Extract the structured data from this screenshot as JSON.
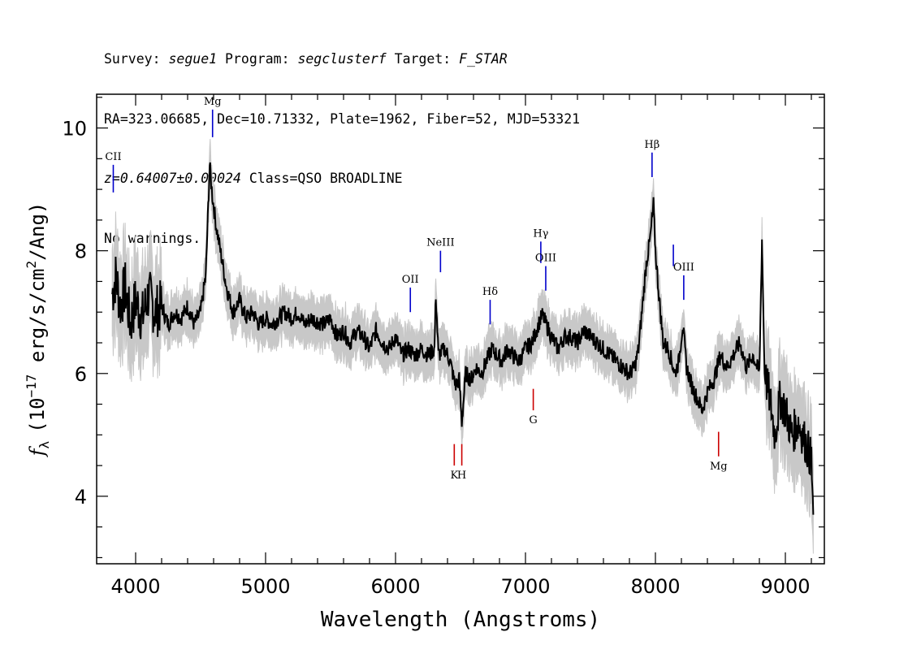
{
  "header": {
    "survey_label": "Survey: ",
    "survey": "segue1",
    "program_label": " Program: ",
    "program": "segclusterf",
    "target_label": " Target: ",
    "target": "F_STAR",
    "coords": "RA=323.06685, Dec=10.71332, Plate=1962, Fiber=52, MJD=53321",
    "redshift": "z=0.64007±0.00024",
    "class": " Class=QSO BROADLINE",
    "warnings": "No warnings."
  },
  "chart_data": {
    "type": "line",
    "xlabel": "Wavelength (Angstroms)",
    "ylabel_f": "f",
    "ylabel_sub": "λ",
    "ylabel_pre": "(10",
    "ylabel_exp": "−17",
    "ylabel_mid": " erg/s/cm",
    "ylabel_exp2": "2",
    "ylabel_post": "/Ang)",
    "xlim": [
      3700,
      9300
    ],
    "ylim": [
      2.9,
      10.55
    ],
    "xticks": [
      "4000",
      "5000",
      "6000",
      "7000",
      "8000",
      "9000"
    ],
    "yticks": [
      "4",
      "6",
      "8",
      "10"
    ],
    "series": [
      {
        "role": "flux",
        "color": "#000000",
        "points": [
          [
            3820,
            7.3
          ],
          [
            3850,
            7.6
          ],
          [
            3880,
            7.1
          ],
          [
            3920,
            7.4
          ],
          [
            3960,
            6.8
          ],
          [
            4000,
            7.2
          ],
          [
            4050,
            6.9
          ],
          [
            4100,
            7.3
          ],
          [
            4150,
            7.0
          ],
          [
            4200,
            7.1
          ],
          [
            4250,
            6.8
          ],
          [
            4300,
            7.0
          ],
          [
            4350,
            6.9
          ],
          [
            4400,
            7.1
          ],
          [
            4450,
            6.8
          ],
          [
            4500,
            7.0
          ],
          [
            4540,
            7.6
          ],
          [
            4570,
            9.4
          ],
          [
            4590,
            8.9
          ],
          [
            4620,
            8.4
          ],
          [
            4660,
            7.9
          ],
          [
            4700,
            7.4
          ],
          [
            4750,
            7.0
          ],
          [
            4800,
            7.2
          ],
          [
            4850,
            6.9
          ],
          [
            4900,
            7.0
          ],
          [
            4950,
            6.8
          ],
          [
            5000,
            6.9
          ],
          [
            5050,
            6.8
          ],
          [
            5100,
            6.9
          ],
          [
            5150,
            7.0
          ],
          [
            5200,
            6.9
          ],
          [
            5250,
            7.0
          ],
          [
            5300,
            6.8
          ],
          [
            5350,
            6.9
          ],
          [
            5400,
            6.85
          ],
          [
            5450,
            6.8
          ],
          [
            5500,
            6.9
          ],
          [
            5550,
            6.6
          ],
          [
            5600,
            6.7
          ],
          [
            5650,
            6.5
          ],
          [
            5700,
            6.7
          ],
          [
            5750,
            6.6
          ],
          [
            5800,
            6.4
          ],
          [
            5850,
            6.7
          ],
          [
            5900,
            6.5
          ],
          [
            5950,
            6.4
          ],
          [
            6000,
            6.6
          ],
          [
            6050,
            6.3
          ],
          [
            6100,
            6.4
          ],
          [
            6150,
            6.3
          ],
          [
            6200,
            6.4
          ],
          [
            6250,
            6.3
          ],
          [
            6300,
            6.4
          ],
          [
            6310,
            7.3
          ],
          [
            6330,
            6.3
          ],
          [
            6380,
            6.4
          ],
          [
            6420,
            6.2
          ],
          [
            6460,
            5.8
          ],
          [
            6490,
            5.9
          ],
          [
            6510,
            5.2
          ],
          [
            6540,
            6.0
          ],
          [
            6580,
            5.9
          ],
          [
            6620,
            6.1
          ],
          [
            6660,
            6.0
          ],
          [
            6700,
            6.2
          ],
          [
            6740,
            6.4
          ],
          [
            6780,
            6.3
          ],
          [
            6820,
            6.2
          ],
          [
            6860,
            6.4
          ],
          [
            6900,
            6.3
          ],
          [
            6950,
            6.2
          ],
          [
            7000,
            6.4
          ],
          [
            7050,
            6.5
          ],
          [
            7100,
            6.8
          ],
          [
            7130,
            6.95
          ],
          [
            7160,
            6.8
          ],
          [
            7200,
            6.6
          ],
          [
            7250,
            6.4
          ],
          [
            7300,
            6.6
          ],
          [
            7350,
            6.6
          ],
          [
            7400,
            6.5
          ],
          [
            7450,
            6.7
          ],
          [
            7500,
            6.6
          ],
          [
            7550,
            6.5
          ],
          [
            7600,
            6.4
          ],
          [
            7650,
            6.3
          ],
          [
            7700,
            6.2
          ],
          [
            7750,
            6.1
          ],
          [
            7800,
            6.0
          ],
          [
            7840,
            6.1
          ],
          [
            7870,
            6.4
          ],
          [
            7900,
            7.1
          ],
          [
            7930,
            7.8
          ],
          [
            7960,
            8.2
          ],
          [
            7985,
            8.75
          ],
          [
            8000,
            8.0
          ],
          [
            8030,
            7.2
          ],
          [
            8060,
            6.5
          ],
          [
            8100,
            6.4
          ],
          [
            8150,
            6.0
          ],
          [
            8180,
            6.2
          ],
          [
            8210,
            6.8
          ],
          [
            8240,
            6.1
          ],
          [
            8280,
            5.8
          ],
          [
            8320,
            5.6
          ],
          [
            8360,
            5.4
          ],
          [
            8400,
            5.7
          ],
          [
            8450,
            5.9
          ],
          [
            8500,
            6.3
          ],
          [
            8550,
            6.1
          ],
          [
            8600,
            6.3
          ],
          [
            8650,
            6.5
          ],
          [
            8700,
            6.1
          ],
          [
            8750,
            6.3
          ],
          [
            8800,
            6.0
          ],
          [
            8820,
            8.2
          ],
          [
            8840,
            6.0
          ],
          [
            8880,
            5.6
          ],
          [
            8920,
            5.0
          ],
          [
            8960,
            5.6
          ],
          [
            9000,
            5.4
          ],
          [
            9050,
            5.0
          ],
          [
            9100,
            5.2
          ],
          [
            9150,
            4.9
          ],
          [
            9200,
            4.6
          ],
          [
            9215,
            3.7
          ]
        ]
      }
    ],
    "error_band": {
      "color": "#c8c8c8",
      "halfwidth": 0.28
    },
    "lines": [
      {
        "label": "CII",
        "wavelength": 3828,
        "kind": "emission",
        "color": "#0000cc",
        "y_top": 9.4,
        "y_bot": 8.95
      },
      {
        "label": "Mg",
        "wavelength": 4592,
        "kind": "emission",
        "color": "#0000cc",
        "y_top": 10.3,
        "y_bot": 9.85
      },
      {
        "label": "OII",
        "wavelength": 6114,
        "kind": "emission",
        "color": "#0000cc",
        "y_top": 7.4,
        "y_bot": 7.0
      },
      {
        "label": "NeIII",
        "wavelength": 6346,
        "kind": "emission",
        "color": "#0000cc",
        "y_top": 8.0,
        "y_bot": 7.65
      },
      {
        "label": "Hδ",
        "wavelength": 6728,
        "kind": "emission",
        "color": "#0000cc",
        "y_top": 7.2,
        "y_bot": 6.8
      },
      {
        "label": "Hγ",
        "wavelength": 7118,
        "kind": "emission",
        "color": "#0000cc",
        "y_top": 8.15,
        "y_bot": 7.8
      },
      {
        "label": "OIII",
        "wavelength": 7156,
        "kind": "emission",
        "color": "#0000cc",
        "y_top": 7.75,
        "y_bot": 7.35
      },
      {
        "label": "Hβ",
        "wavelength": 7974,
        "kind": "emission",
        "color": "#0000cc",
        "y_top": 9.6,
        "y_bot": 9.2
      },
      {
        "label": "OIII",
        "wavelength": 8218,
        "kind": "emission",
        "color": "#0000cc",
        "y_top": 7.6,
        "y_bot": 7.2
      },
      {
        "label": "",
        "wavelength": 8138,
        "kind": "emission",
        "color": "#0000cc",
        "y_top": 8.1,
        "y_bot": 7.75
      },
      {
        "label": "K",
        "wavelength": 6452,
        "kind": "absorption",
        "color": "#cc0000",
        "y_top": 4.85,
        "y_bot": 4.5
      },
      {
        "label": "H",
        "wavelength": 6510,
        "kind": "absorption",
        "color": "#cc0000",
        "y_top": 4.85,
        "y_bot": 4.5
      },
      {
        "label": "G",
        "wavelength": 7060,
        "kind": "absorption",
        "color": "#cc0000",
        "y_top": 5.75,
        "y_bot": 5.4
      },
      {
        "label": "Mg",
        "wavelength": 8486,
        "kind": "absorption",
        "color": "#cc0000",
        "y_top": 5.05,
        "y_bot": 4.65
      }
    ]
  }
}
